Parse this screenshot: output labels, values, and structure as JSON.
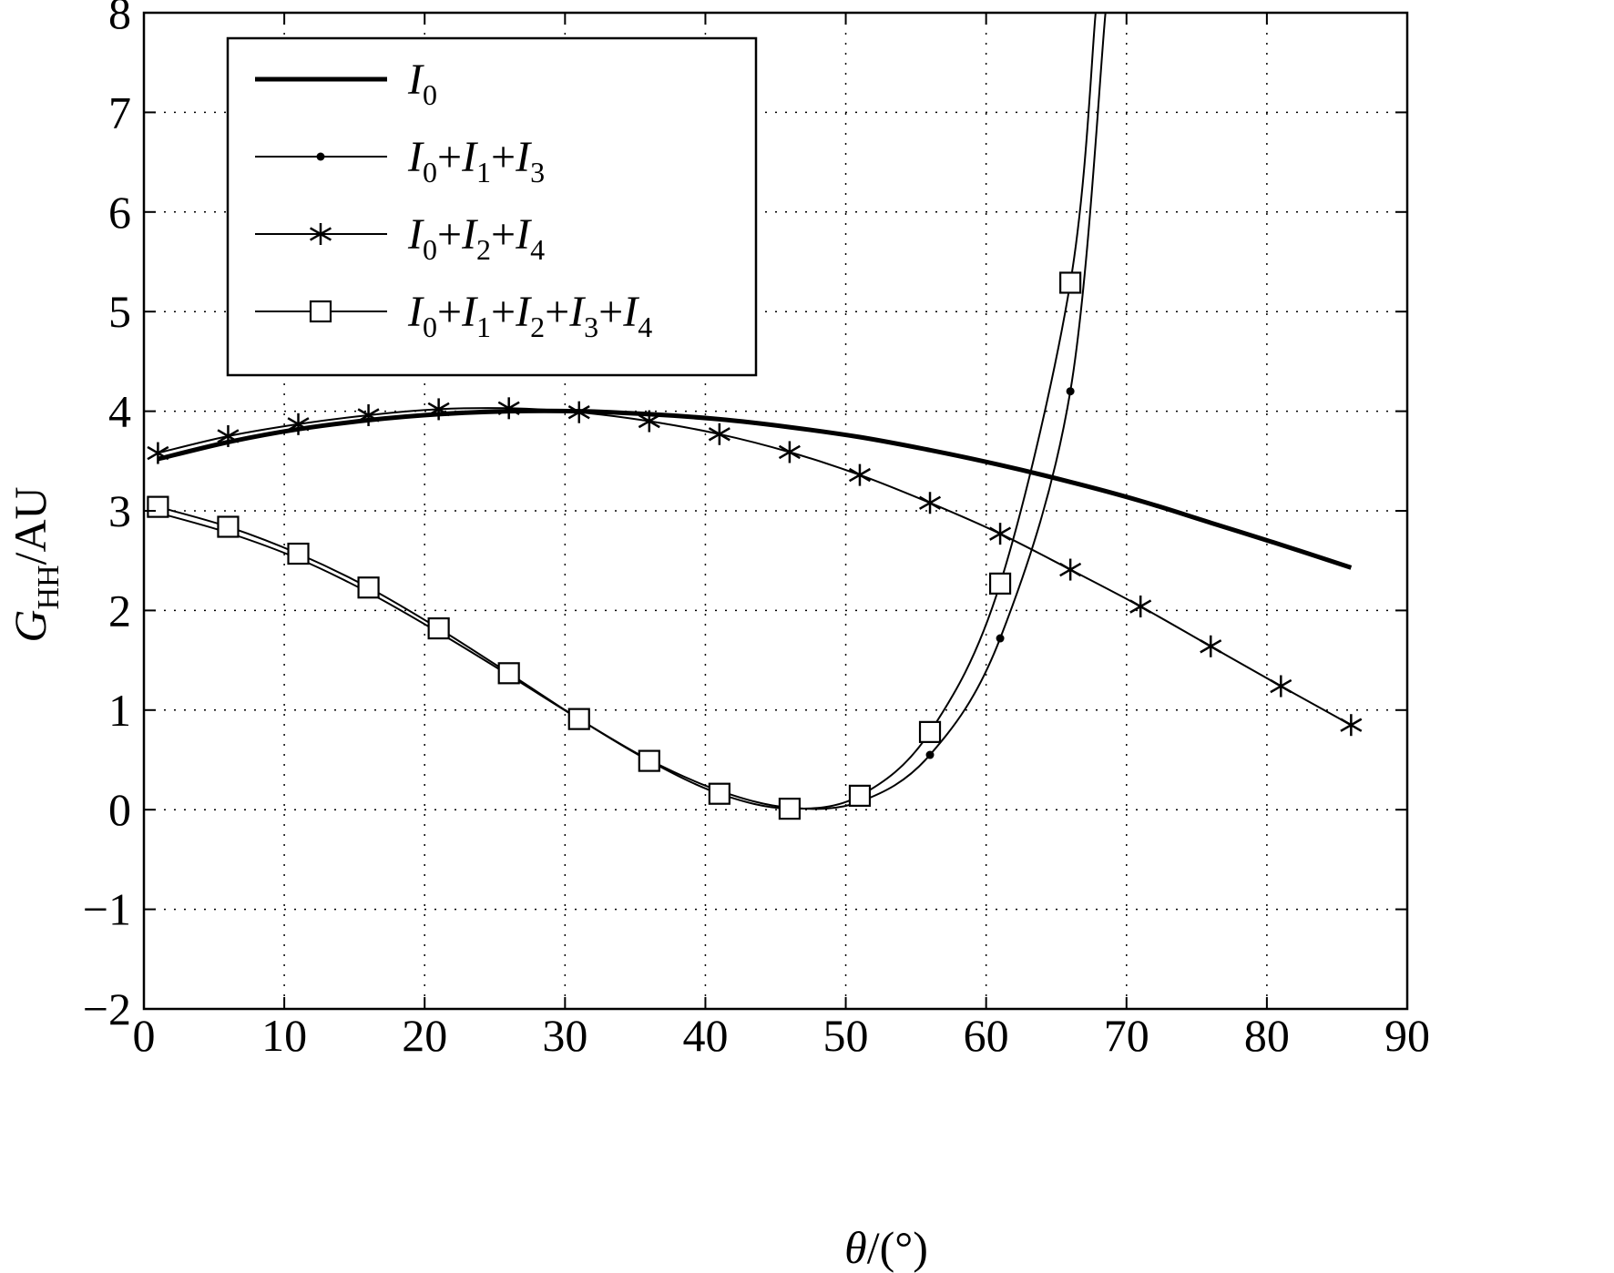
{
  "chart_data": {
    "type": "line",
    "xlabel": "θ/(°)",
    "ylabel": "G_HH/AU",
    "xlim": [
      0,
      90
    ],
    "ylim": [
      -2,
      8
    ],
    "xticks": [
      0,
      10,
      20,
      30,
      40,
      50,
      60,
      70,
      80,
      90
    ],
    "yticks": [
      -2,
      -1,
      0,
      1,
      2,
      3,
      4,
      5,
      6,
      7,
      8
    ],
    "grid": true,
    "grid_style": "dotted",
    "legend_position": "top-left",
    "series": [
      {
        "name": "I0",
        "marker": "none",
        "line_weight": "thick",
        "x": [
          1,
          6,
          11,
          16,
          21,
          26,
          31,
          36,
          41,
          46,
          51,
          56,
          61,
          66,
          71,
          76,
          81,
          86
        ],
        "y": [
          3.52,
          3.69,
          3.82,
          3.91,
          3.97,
          4.0,
          4.0,
          3.97,
          3.92,
          3.84,
          3.74,
          3.61,
          3.46,
          3.29,
          3.1,
          2.88,
          2.66,
          2.43
        ]
      },
      {
        "name": "I0+I1+I3",
        "marker": "dot",
        "line_weight": "thin",
        "x": [
          1,
          6,
          11,
          16,
          21,
          26,
          31,
          36,
          41,
          46,
          51,
          56,
          61,
          66,
          68.5
        ],
        "y": [
          2.98,
          2.78,
          2.52,
          2.18,
          1.78,
          1.35,
          0.91,
          0.5,
          0.19,
          0.02,
          0.08,
          0.55,
          1.72,
          4.2,
          8.0
        ]
      },
      {
        "name": "I0+I2+I4",
        "marker": "asterisk",
        "line_weight": "thin",
        "x": [
          1,
          6,
          11,
          16,
          21,
          26,
          31,
          36,
          41,
          46,
          51,
          56,
          61,
          66,
          71,
          76,
          81,
          86
        ],
        "y": [
          3.58,
          3.75,
          3.87,
          3.96,
          4.02,
          4.03,
          3.99,
          3.9,
          3.77,
          3.59,
          3.36,
          3.08,
          2.77,
          2.41,
          2.04,
          1.64,
          1.24,
          0.85
        ]
      },
      {
        "name": "I0+I1+I2+I3+I4",
        "marker": "square",
        "line_weight": "thin",
        "x": [
          1,
          6,
          11,
          16,
          21,
          26,
          31,
          36,
          41,
          46,
          51,
          56,
          61,
          66,
          67.8
        ],
        "y": [
          3.04,
          2.84,
          2.57,
          2.23,
          1.82,
          1.37,
          0.91,
          0.49,
          0.16,
          0.01,
          0.14,
          0.78,
          2.27,
          5.29,
          8.0
        ]
      }
    ]
  }
}
